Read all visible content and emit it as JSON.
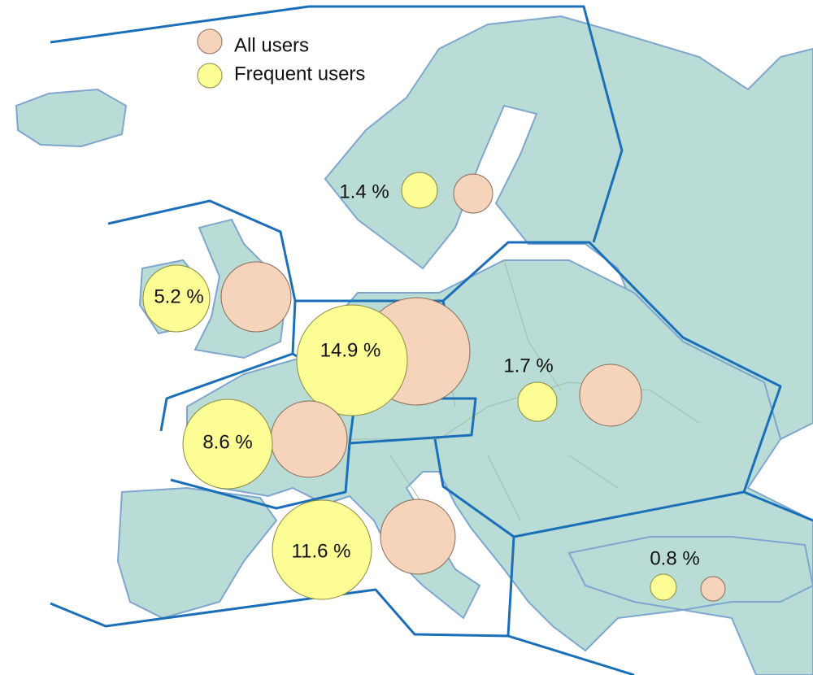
{
  "legend": {
    "all_users": "All users",
    "frequent_users": "Frequent users"
  },
  "regions": [
    {
      "label": "1.4 %"
    },
    {
      "label": "5.2 %"
    },
    {
      "label": "14.9 %"
    },
    {
      "label": "8.6 %"
    },
    {
      "label": "11.6 %"
    },
    {
      "label": "1.7 %"
    },
    {
      "label": "0.8 %"
    }
  ]
}
